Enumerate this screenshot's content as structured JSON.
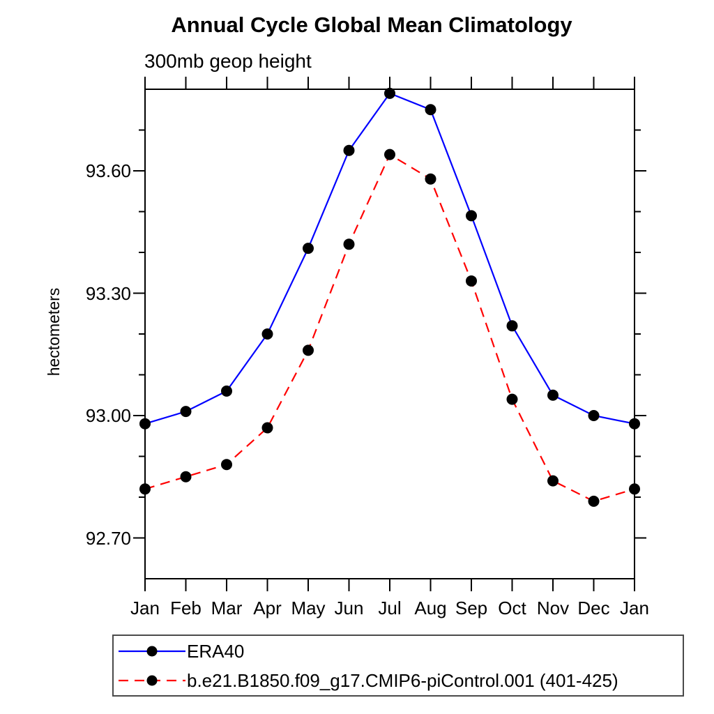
{
  "chart_data": {
    "type": "line",
    "title": "Annual Cycle Global Mean Climatology",
    "subtitle": "300mb geop height",
    "ylabel": "hectometers",
    "categories": [
      "Jan",
      "Feb",
      "Mar",
      "Apr",
      "May",
      "Jun",
      "Jul",
      "Aug",
      "Sep",
      "Oct",
      "Nov",
      "Dec",
      "Jan"
    ],
    "ylim": [
      92.6,
      93.8
    ],
    "ytick_major": {
      "values": [
        92.7,
        93.0,
        93.3,
        93.6
      ],
      "labels": [
        "92.70",
        "93.00",
        "93.30",
        "93.60"
      ]
    },
    "ytick_minor_interval": 0.1,
    "grid": false,
    "axis_color": "#000000",
    "background_color": "#ffffff",
    "legend_position": "bottom-left-box",
    "series": [
      {
        "name": "ERA40",
        "line_color": "#0000ff",
        "line_style": "solid",
        "marker": "filled-circle",
        "marker_color": "#000000",
        "values": [
          92.98,
          93.01,
          93.06,
          93.2,
          93.41,
          93.65,
          93.79,
          93.75,
          93.49,
          93.22,
          93.05,
          93.0,
          92.98
        ]
      },
      {
        "name": "b.e21.B1850.f09_g17.CMIP6-piControl.001 (401-425)",
        "line_color": "#ff0000",
        "line_style": "dashed",
        "marker": "filled-circle",
        "marker_color": "#000000",
        "values": [
          92.82,
          92.85,
          92.88,
          92.97,
          93.16,
          93.42,
          93.64,
          93.58,
          93.33,
          93.04,
          92.84,
          92.79,
          92.82
        ]
      }
    ]
  }
}
